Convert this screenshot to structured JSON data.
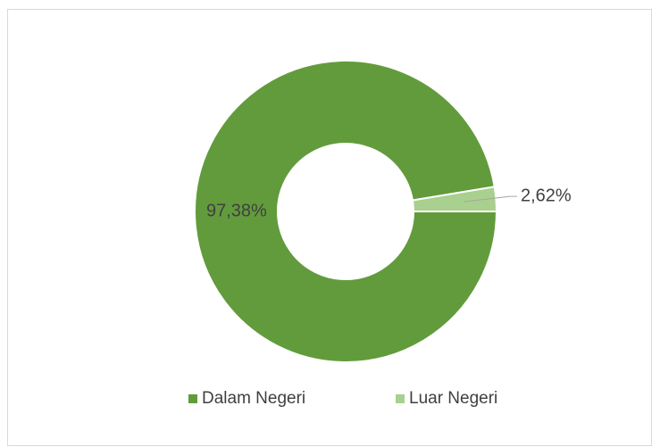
{
  "chart_data": {
    "type": "donut",
    "categories": [
      "Dalam Negeri",
      "Luar Negeri"
    ],
    "values": [
      97.38,
      2.62
    ],
    "value_labels": [
      "97,38%",
      "2,62%"
    ],
    "colors": [
      "#629b3c",
      "#a9d08e"
    ],
    "legend": "bottom"
  }
}
